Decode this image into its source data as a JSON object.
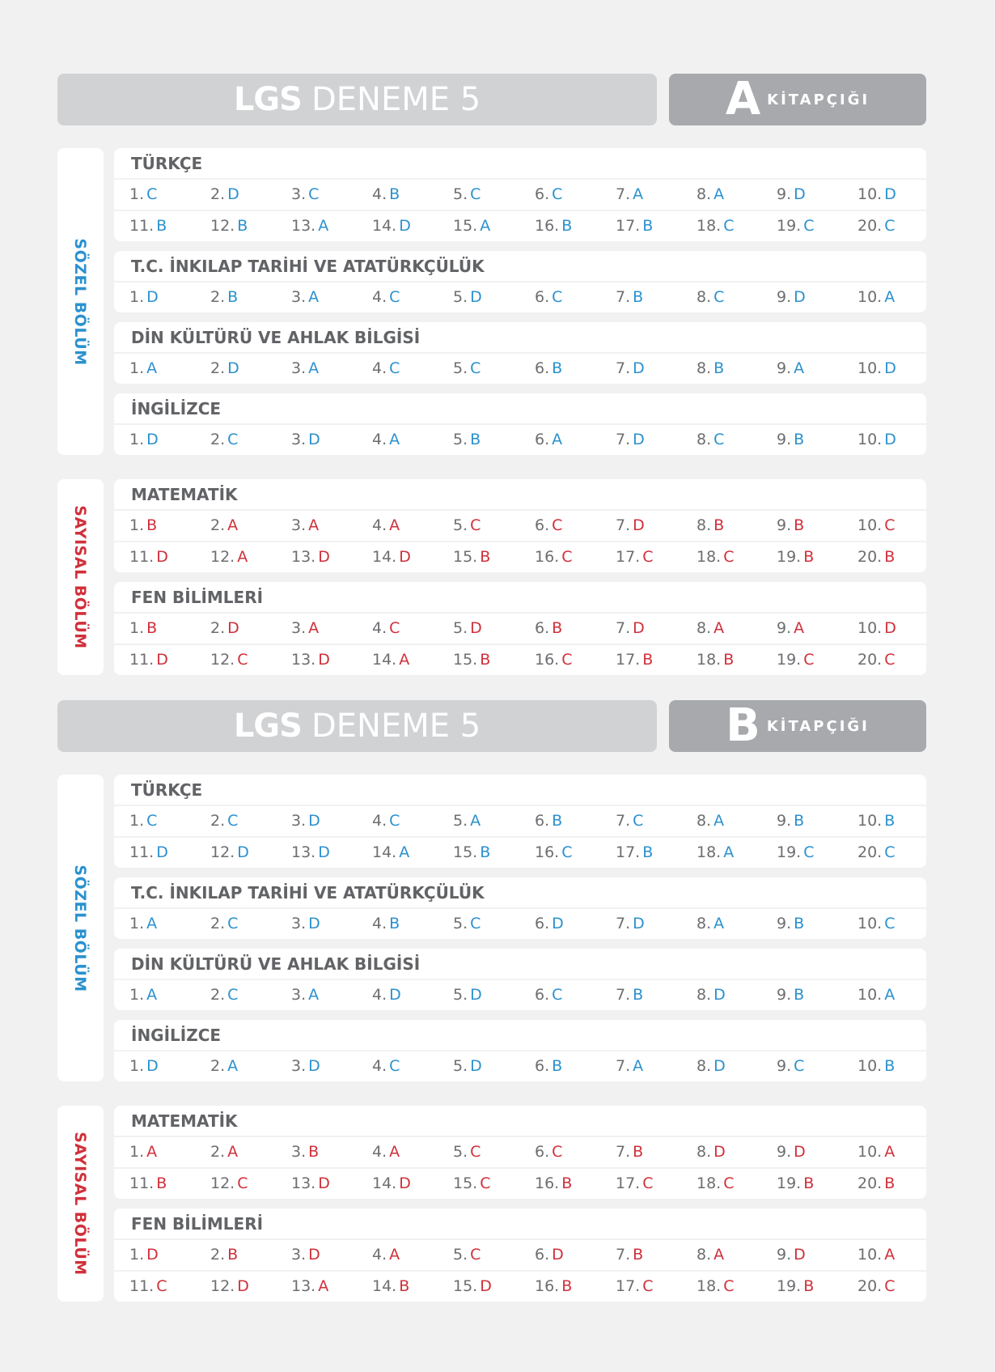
{
  "colors": {
    "blue": "#2b91cf",
    "red": "#d0303a",
    "title_bg": "#d1d2d4",
    "kit_bg": "#a7a9ac",
    "page_bg": "#f1f1f2",
    "heading_text": "#626366"
  },
  "booklets": [
    {
      "title_bold": "LGS",
      "title_rest": "DENEME 5",
      "letter": "A",
      "kit_label": "KİTAPÇIĞI",
      "sozel_label": "SÖZEL BÖLÜM",
      "sayisal_label": "SAYISAL BÖLÜM",
      "sozel": [
        {
          "name": "TÜRKÇE",
          "rows": [
            [
              [
                "1.",
                "C"
              ],
              [
                "2.",
                "D"
              ],
              [
                "3.",
                "C"
              ],
              [
                "4.",
                "B"
              ],
              [
                "5.",
                "C"
              ],
              [
                "6.",
                "C"
              ],
              [
                "7.",
                "A"
              ],
              [
                "8.",
                "A"
              ],
              [
                "9.",
                "D"
              ],
              [
                "10.",
                "D"
              ]
            ],
            [
              [
                "11.",
                "B"
              ],
              [
                "12.",
                "B"
              ],
              [
                "13.",
                "A"
              ],
              [
                "14.",
                "D"
              ],
              [
                "15.",
                "A"
              ],
              [
                "16.",
                "B"
              ],
              [
                "17.",
                "B"
              ],
              [
                "18.",
                "C"
              ],
              [
                "19.",
                "C"
              ],
              [
                "20.",
                "C"
              ]
            ]
          ]
        },
        {
          "name": "T.C. İNKILAP TARİHİ VE ATATÜRKÇÜLÜK",
          "rows": [
            [
              [
                "1.",
                "D"
              ],
              [
                "2.",
                "B"
              ],
              [
                "3.",
                "A"
              ],
              [
                "4.",
                "C"
              ],
              [
                "5.",
                "D"
              ],
              [
                "6.",
                "C"
              ],
              [
                "7.",
                "B"
              ],
              [
                "8.",
                "C"
              ],
              [
                "9.",
                "D"
              ],
              [
                "10.",
                "A"
              ]
            ]
          ]
        },
        {
          "name": "DİN KÜLTÜRÜ VE AHLAK BİLGİSİ",
          "rows": [
            [
              [
                "1.",
                "A"
              ],
              [
                "2.",
                "D"
              ],
              [
                "3.",
                "A"
              ],
              [
                "4.",
                "C"
              ],
              [
                "5.",
                "C"
              ],
              [
                "6.",
                "B"
              ],
              [
                "7.",
                "D"
              ],
              [
                "8.",
                "B"
              ],
              [
                "9.",
                "A"
              ],
              [
                "10.",
                "D"
              ]
            ]
          ]
        },
        {
          "name": "İNGİLİZCE",
          "rows": [
            [
              [
                "1.",
                "D"
              ],
              [
                "2.",
                "C"
              ],
              [
                "3.",
                "D"
              ],
              [
                "4.",
                "A"
              ],
              [
                "5.",
                "B"
              ],
              [
                "6.",
                "A"
              ],
              [
                "7.",
                "D"
              ],
              [
                "8.",
                "C"
              ],
              [
                "9.",
                "B"
              ],
              [
                "10.",
                "D"
              ]
            ]
          ]
        }
      ],
      "sayisal": [
        {
          "name": "MATEMATİK",
          "rows": [
            [
              [
                "1.",
                "B"
              ],
              [
                "2.",
                "A"
              ],
              [
                "3.",
                "A"
              ],
              [
                "4.",
                "A"
              ],
              [
                "5.",
                "C"
              ],
              [
                "6.",
                "C"
              ],
              [
                "7.",
                "D"
              ],
              [
                "8.",
                "B"
              ],
              [
                "9.",
                "B"
              ],
              [
                "10.",
                "C"
              ]
            ],
            [
              [
                "11.",
                "D"
              ],
              [
                "12.",
                "A"
              ],
              [
                "13.",
                "D"
              ],
              [
                "14.",
                "D"
              ],
              [
                "15.",
                "B"
              ],
              [
                "16.",
                "C"
              ],
              [
                "17.",
                "C"
              ],
              [
                "18.",
                "C"
              ],
              [
                "19.",
                "B"
              ],
              [
                "20.",
                "B"
              ]
            ]
          ]
        },
        {
          "name": "FEN BİLİMLERİ",
          "rows": [
            [
              [
                "1.",
                "B"
              ],
              [
                "2.",
                "D"
              ],
              [
                "3.",
                "A"
              ],
              [
                "4.",
                "C"
              ],
              [
                "5.",
                "D"
              ],
              [
                "6.",
                "B"
              ],
              [
                "7.",
                "D"
              ],
              [
                "8.",
                "A"
              ],
              [
                "9.",
                "A"
              ],
              [
                "10.",
                "D"
              ]
            ],
            [
              [
                "11.",
                "D"
              ],
              [
                "12.",
                "C"
              ],
              [
                "13.",
                "D"
              ],
              [
                "14.",
                "A"
              ],
              [
                "15.",
                "B"
              ],
              [
                "16.",
                "C"
              ],
              [
                "17.",
                "B"
              ],
              [
                "18.",
                "B"
              ],
              [
                "19.",
                "C"
              ],
              [
                "20.",
                "C"
              ]
            ]
          ]
        }
      ]
    },
    {
      "title_bold": "LGS",
      "title_rest": "DENEME 5",
      "letter": "B",
      "kit_label": "KİTAPÇIĞI",
      "sozel_label": "SÖZEL BÖLÜM",
      "sayisal_label": "SAYISAL BÖLÜM",
      "sozel": [
        {
          "name": "TÜRKÇE",
          "rows": [
            [
              [
                "1.",
                "C"
              ],
              [
                "2.",
                "C"
              ],
              [
                "3.",
                "D"
              ],
              [
                "4.",
                "C"
              ],
              [
                "5.",
                "A"
              ],
              [
                "6.",
                "B"
              ],
              [
                "7.",
                "C"
              ],
              [
                "8.",
                "A"
              ],
              [
                "9.",
                "B"
              ],
              [
                "10.",
                "B"
              ]
            ],
            [
              [
                "11.",
                "D"
              ],
              [
                "12.",
                "D"
              ],
              [
                "13.",
                "D"
              ],
              [
                "14.",
                "A"
              ],
              [
                "15.",
                "B"
              ],
              [
                "16.",
                "C"
              ],
              [
                "17.",
                "B"
              ],
              [
                "18.",
                "A"
              ],
              [
                "19.",
                "C"
              ],
              [
                "20.",
                "C"
              ]
            ]
          ]
        },
        {
          "name": "T.C. İNKILAP TARİHİ VE ATATÜRKÇÜLÜK",
          "rows": [
            [
              [
                "1.",
                "A"
              ],
              [
                "2.",
                "C"
              ],
              [
                "3.",
                "D"
              ],
              [
                "4.",
                "B"
              ],
              [
                "5.",
                "C"
              ],
              [
                "6.",
                "D"
              ],
              [
                "7.",
                "D"
              ],
              [
                "8.",
                "A"
              ],
              [
                "9.",
                "B"
              ],
              [
                "10.",
                "C"
              ]
            ]
          ]
        },
        {
          "name": "DİN KÜLTÜRÜ VE AHLAK BİLGİSİ",
          "rows": [
            [
              [
                "1.",
                "A"
              ],
              [
                "2.",
                "C"
              ],
              [
                "3.",
                "A"
              ],
              [
                "4.",
                "D"
              ],
              [
                "5.",
                "D"
              ],
              [
                "6.",
                "C"
              ],
              [
                "7.",
                "B"
              ],
              [
                "8.",
                "D"
              ],
              [
                "9.",
                "B"
              ],
              [
                "10.",
                "A"
              ]
            ]
          ]
        },
        {
          "name": "İNGİLİZCE",
          "rows": [
            [
              [
                "1.",
                "D"
              ],
              [
                "2.",
                "A"
              ],
              [
                "3.",
                "D"
              ],
              [
                "4.",
                "C"
              ],
              [
                "5.",
                "D"
              ],
              [
                "6.",
                "B"
              ],
              [
                "7.",
                "A"
              ],
              [
                "8.",
                "D"
              ],
              [
                "9.",
                "C"
              ],
              [
                "10.",
                "B"
              ]
            ]
          ]
        }
      ],
      "sayisal": [
        {
          "name": "MATEMATİK",
          "rows": [
            [
              [
                "1.",
                "A"
              ],
              [
                "2.",
                "A"
              ],
              [
                "3.",
                "B"
              ],
              [
                "4.",
                "A"
              ],
              [
                "5.",
                "C"
              ],
              [
                "6.",
                "C"
              ],
              [
                "7.",
                "B"
              ],
              [
                "8.",
                "D"
              ],
              [
                "9.",
                "D"
              ],
              [
                "10.",
                "A"
              ]
            ],
            [
              [
                "11.",
                "B"
              ],
              [
                "12.",
                "C"
              ],
              [
                "13.",
                "D"
              ],
              [
                "14.",
                "D"
              ],
              [
                "15.",
                "C"
              ],
              [
                "16.",
                "B"
              ],
              [
                "17.",
                "C"
              ],
              [
                "18.",
                "C"
              ],
              [
                "19.",
                "B"
              ],
              [
                "20.",
                "B"
              ]
            ]
          ]
        },
        {
          "name": "FEN BİLİMLERİ",
          "rows": [
            [
              [
                "1.",
                "D"
              ],
              [
                "2.",
                "B"
              ],
              [
                "3.",
                "D"
              ],
              [
                "4.",
                "A"
              ],
              [
                "5.",
                "C"
              ],
              [
                "6.",
                "D"
              ],
              [
                "7.",
                "B"
              ],
              [
                "8.",
                "A"
              ],
              [
                "9.",
                "D"
              ],
              [
                "10.",
                "A"
              ]
            ],
            [
              [
                "11.",
                "C"
              ],
              [
                "12.",
                "D"
              ],
              [
                "13.",
                "A"
              ],
              [
                "14.",
                "B"
              ],
              [
                "15.",
                "D"
              ],
              [
                "16.",
                "B"
              ],
              [
                "17.",
                "C"
              ],
              [
                "18.",
                "C"
              ],
              [
                "19.",
                "B"
              ],
              [
                "20.",
                "C"
              ]
            ]
          ]
        }
      ]
    }
  ]
}
